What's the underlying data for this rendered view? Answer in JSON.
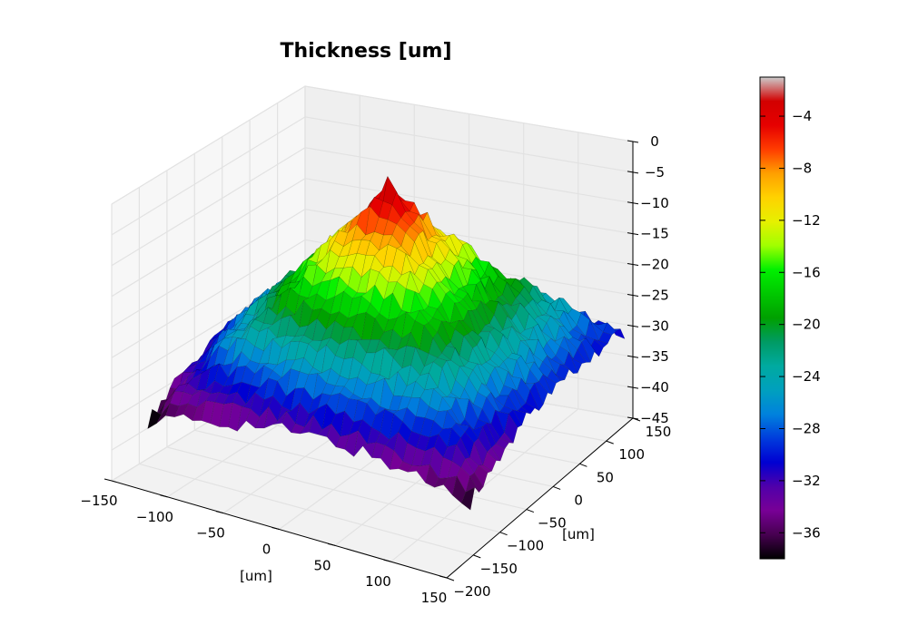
{
  "chart_data": {
    "type": "surface3d",
    "title": "Thickness [um]",
    "xlabel": "[um]",
    "ylabel": "[um]",
    "zlabel": "",
    "xlim": [
      -150,
      150
    ],
    "ylim": [
      -200,
      150
    ],
    "zlim": [
      -45,
      0
    ],
    "x_ticks": [
      "−150",
      "−100",
      "−50",
      "0",
      "50",
      "100",
      "150"
    ],
    "y_ticks": [
      "−200",
      "−150",
      "−100",
      "−50",
      "0",
      "50",
      "100",
      "150"
    ],
    "z_ticks": [
      "−45",
      "−40",
      "−35",
      "−30",
      "−25",
      "−20",
      "−15",
      "−10",
      "−5",
      "0"
    ],
    "z_tick_values": [
      -45,
      -40,
      -35,
      -30,
      -25,
      -20,
      -15,
      -10,
      -5,
      0
    ],
    "surface": {
      "peak_value": -1,
      "peak_location": [
        0,
        0
      ],
      "corner_values": {
        "left": -38,
        "front": -37,
        "right": -31,
        "back": -31
      },
      "grid": true
    },
    "colorbar": {
      "colormap": "nipy_spectral",
      "min": -38,
      "max": -1,
      "ticks": [
        "−36",
        "−32",
        "−28",
        "−24",
        "−20",
        "−16",
        "−12",
        "−8",
        "−4"
      ],
      "tick_values": [
        -36,
        -32,
        -28,
        -24,
        -20,
        -16,
        -12,
        -8,
        -4
      ]
    }
  }
}
